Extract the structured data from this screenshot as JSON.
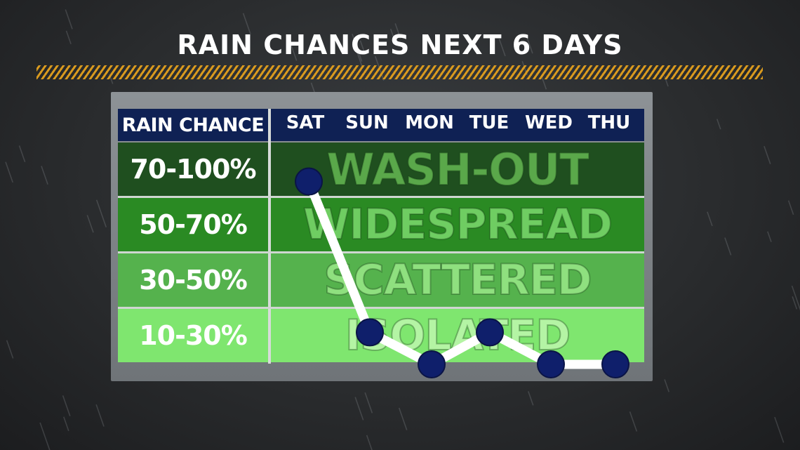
{
  "title": "RAIN CHANCES NEXT 6 DAYS",
  "table": {
    "header_label": "RAIN CHANCE",
    "days": [
      "SAT",
      "SUN",
      "MON",
      "TUE",
      "WED",
      "THU"
    ],
    "rows": [
      {
        "range": "70-100%",
        "category": "WASH-OUT",
        "bg": "#1f4f1f",
        "text_color": "#5aa84a"
      },
      {
        "range": "50-70%",
        "category": "WIDESPREAD",
        "bg": "#2a8a23",
        "text_color": "#6fcd62"
      },
      {
        "range": "30-50%",
        "category": "SCATTERED",
        "bg": "#55b24d",
        "text_color": "#8fe07f"
      },
      {
        "range": "10-30%",
        "category": "ISOLATED",
        "bg": "#7fe66f",
        "text_color": "#b4f4a4"
      }
    ]
  },
  "chart_data": {
    "type": "line",
    "x": [
      "SAT",
      "SUN",
      "MON",
      "TUE",
      "WED",
      "THU"
    ],
    "series": [
      {
        "values": [
          90,
          24,
          10,
          24,
          10,
          10
        ]
      }
    ],
    "ylim": [
      10,
      100
    ],
    "ytick_labels": [
      "70-100%",
      "50-70%",
      "30-50%",
      "10-30%"
    ],
    "colors": {
      "line": "#ffffff",
      "point": "#0f1f6b"
    }
  }
}
